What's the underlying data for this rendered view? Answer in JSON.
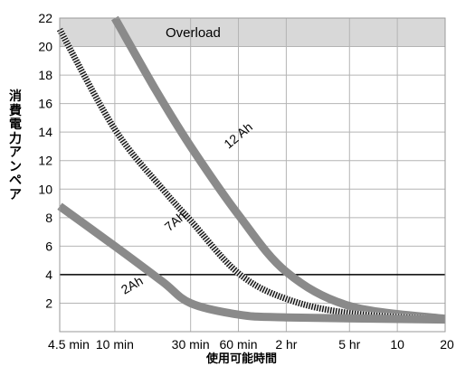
{
  "chart_data": {
    "type": "line",
    "title": "",
    "xlabel": "使用可能時間",
    "ylabel": "消費電力アンペア",
    "x_scale": "log",
    "x_ticks": [
      "4.5 min",
      "10 min",
      "30 min",
      "60 min",
      "2 hr",
      "5 hr",
      "10",
      "20"
    ],
    "x_tick_minutes": [
      4.5,
      10,
      30,
      60,
      120,
      300,
      600,
      1200
    ],
    "ylim": [
      0,
      22
    ],
    "y_ticks": [
      2,
      4,
      6,
      8,
      10,
      12,
      14,
      16,
      18,
      20,
      22
    ],
    "grid": true,
    "overload_region": {
      "label": "Overload",
      "y_from": 20,
      "y_to": 22
    },
    "reference_line": {
      "y": 4
    },
    "series": [
      {
        "name": "12 Ah",
        "style": "solid-gray",
        "color": "#8a8a8a",
        "points": [
          [
            10,
            22
          ],
          [
            18,
            17
          ],
          [
            30,
            13
          ],
          [
            60,
            8.2
          ],
          [
            120,
            4.2
          ],
          [
            300,
            1.8
          ],
          [
            1200,
            0.9
          ]
        ]
      },
      {
        "name": "7Ah",
        "style": "hatched-dark",
        "color": "#222222",
        "points": [
          [
            4.5,
            21.2
          ],
          [
            10,
            14.2
          ],
          [
            20,
            10
          ],
          [
            30,
            7.8
          ],
          [
            60,
            4.1
          ],
          [
            120,
            2.3
          ],
          [
            300,
            1.3
          ],
          [
            1200,
            0.85
          ]
        ]
      },
      {
        "name": "2Ah",
        "style": "solid-gray",
        "color": "#8a8a8a",
        "points": [
          [
            4.5,
            8.8
          ],
          [
            10,
            6
          ],
          [
            20,
            3.5
          ],
          [
            30,
            2
          ],
          [
            60,
            1.2
          ],
          [
            120,
            1
          ],
          [
            1200,
            0.85
          ]
        ]
      }
    ]
  }
}
